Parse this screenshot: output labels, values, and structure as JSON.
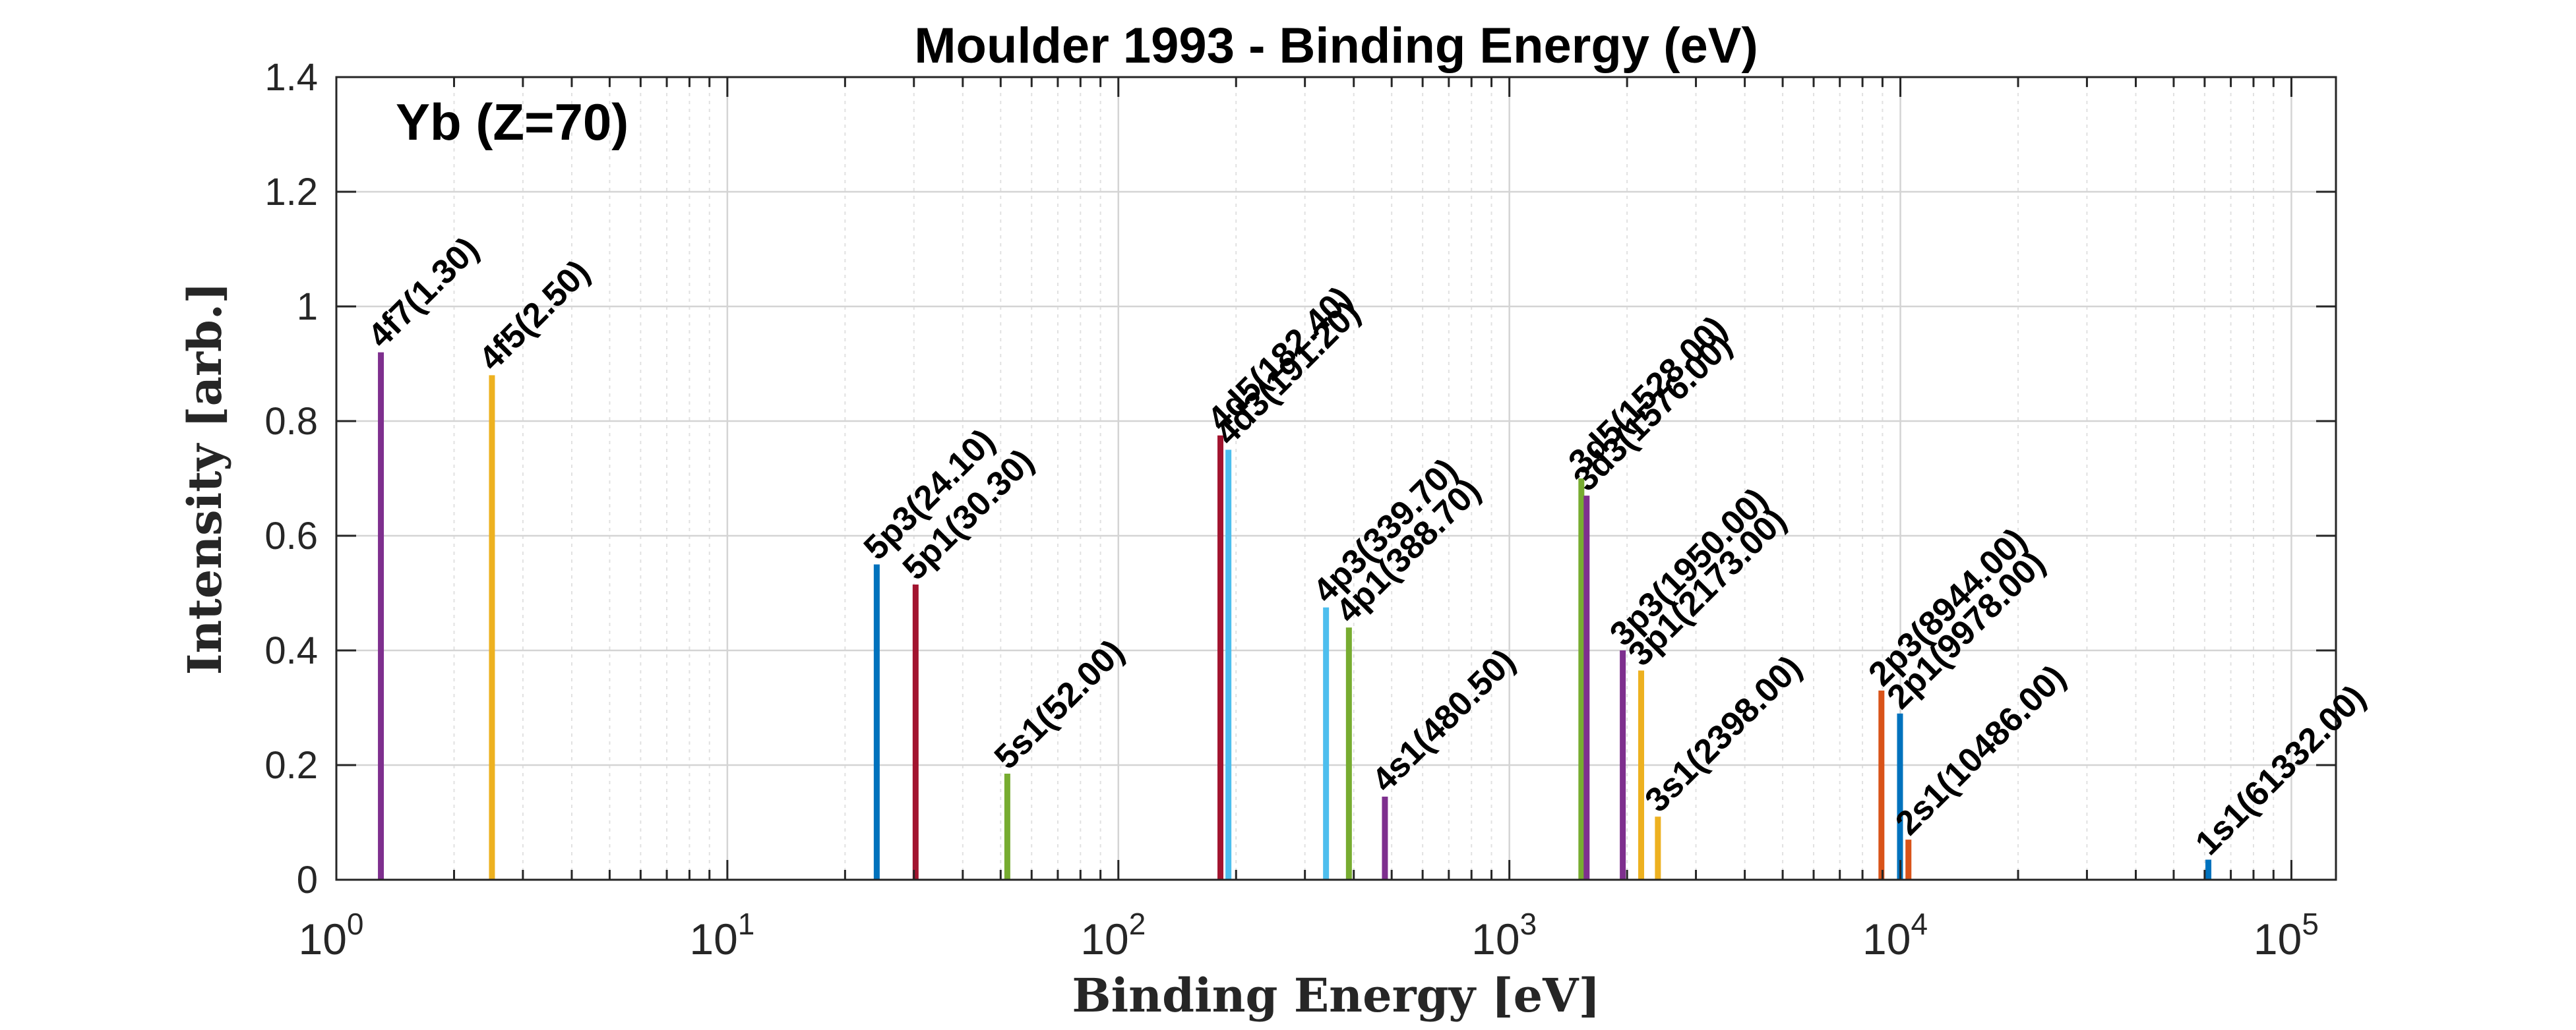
{
  "chart_data": {
    "type": "bar",
    "title": "Moulder 1993 - Binding Energy (eV)",
    "annotation": "Yb (Z=70)",
    "xlabel": "Binding Energy [eV]",
    "ylabel": "Intensity [arb.]",
    "xscale": "log",
    "xlim": [
      1,
      130000
    ],
    "ylim": [
      0,
      1.4
    ],
    "grid": true,
    "x_ticks": [
      {
        "base": "10",
        "exp": "0",
        "value": 1
      },
      {
        "base": "10",
        "exp": "1",
        "value": 10
      },
      {
        "base": "10",
        "exp": "2",
        "value": 100
      },
      {
        "base": "10",
        "exp": "3",
        "value": 1000
      },
      {
        "base": "10",
        "exp": "4",
        "value": 10000
      },
      {
        "base": "10",
        "exp": "5",
        "value": 100000
      }
    ],
    "y_ticks": [
      "0",
      "0.2",
      "0.4",
      "0.6",
      "0.8",
      "1",
      "1.2",
      "1.4"
    ],
    "peaks": [
      {
        "label": "4f7(1.30)",
        "energy": 1.3,
        "intensity": 0.92,
        "color": "#7E2F8E"
      },
      {
        "label": "4f5(2.50)",
        "energy": 2.5,
        "intensity": 0.88,
        "color": "#EDB120"
      },
      {
        "label": "5p3(24.10)",
        "energy": 24.1,
        "intensity": 0.55,
        "color": "#0072BD"
      },
      {
        "label": "5p1(30.30)",
        "energy": 30.3,
        "intensity": 0.515,
        "color": "#A2142F"
      },
      {
        "label": "5s1(52.00)",
        "energy": 52.0,
        "intensity": 0.185,
        "color": "#77AC30"
      },
      {
        "label": "4d5(182.40)",
        "energy": 182.4,
        "intensity": 0.775,
        "color": "#A2142F"
      },
      {
        "label": "4d3(191.20)",
        "energy": 191.2,
        "intensity": 0.75,
        "color": "#4DBEEE"
      },
      {
        "label": "4p3(339.70)",
        "energy": 339.7,
        "intensity": 0.475,
        "color": "#4DBEEE"
      },
      {
        "label": "4p1(388.70)",
        "energy": 388.7,
        "intensity": 0.44,
        "color": "#77AC30"
      },
      {
        "label": "4s1(480.50)",
        "energy": 480.5,
        "intensity": 0.145,
        "color": "#7E2F8E"
      },
      {
        "label": "3d5(1528.00)",
        "energy": 1528.0,
        "intensity": 0.7,
        "color": "#77AC30"
      },
      {
        "label": "3d3(1576.00)",
        "energy": 1576.0,
        "intensity": 0.67,
        "color": "#7E2F8E"
      },
      {
        "label": "3p3(1950.00)",
        "energy": 1950.0,
        "intensity": 0.4,
        "color": "#7E2F8E"
      },
      {
        "label": "3p1(2173.00)",
        "energy": 2173.0,
        "intensity": 0.365,
        "color": "#EDB120"
      },
      {
        "label": "3s1(2398.00)",
        "energy": 2398.0,
        "intensity": 0.11,
        "color": "#EDB120"
      },
      {
        "label": "2p3(8944.00)",
        "energy": 8944.0,
        "intensity": 0.33,
        "color": "#D95319"
      },
      {
        "label": "2p1(9978.00)",
        "energy": 9978.0,
        "intensity": 0.29,
        "color": "#0072BD"
      },
      {
        "label": "2s1(10486.00)",
        "energy": 10486.0,
        "intensity": 0.07,
        "color": "#D95319"
      },
      {
        "label": "1s1(61332.00)",
        "energy": 61332.0,
        "intensity": 0.035,
        "color": "#0072BD"
      }
    ]
  }
}
